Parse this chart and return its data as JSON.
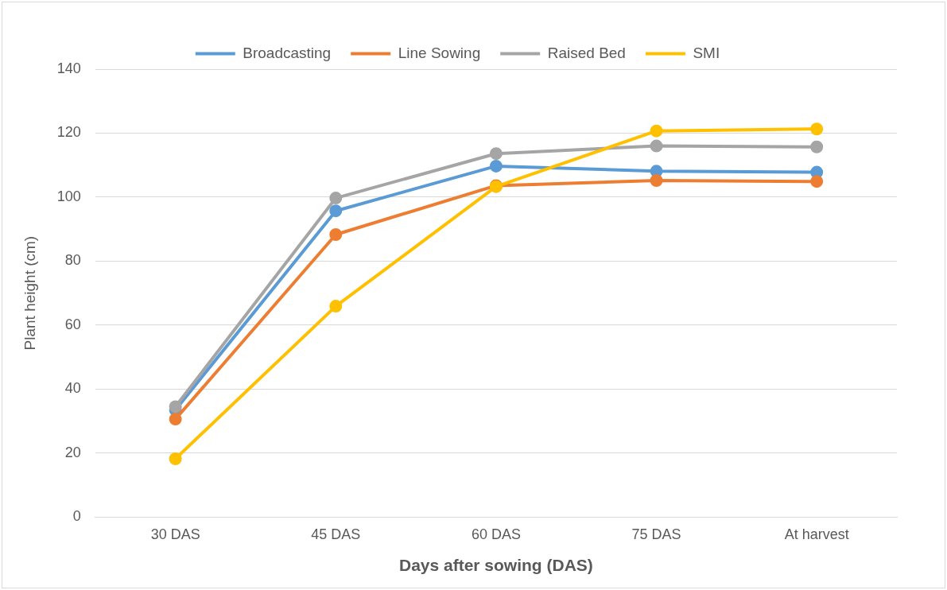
{
  "chart_data": {
    "type": "line",
    "xlabel": "Days after sowing (DAS)",
    "ylabel": "Plant height (cm)",
    "categories": [
      "30 DAS",
      "45 DAS",
      "60 DAS",
      "75 DAS",
      "At harvest"
    ],
    "series": [
      {
        "name": "Broadcasting",
        "color": "#5b9bd5",
        "values": [
          33.5,
          95.7,
          109.7,
          108.1,
          107.8
        ]
      },
      {
        "name": "Line Sowing",
        "color": "#ed7d31",
        "values": [
          30.6,
          88.3,
          103.6,
          105.2,
          104.9
        ]
      },
      {
        "name": "Raised Bed",
        "color": "#a5a5a5",
        "values": [
          34.5,
          99.7,
          113.6,
          116.0,
          115.7
        ]
      },
      {
        "name": "SMI",
        "color": "#ffc000",
        "values": [
          18.2,
          65.9,
          103.3,
          120.7,
          121.3
        ]
      }
    ],
    "ylim": [
      0,
      140
    ],
    "yticks": [
      0,
      20,
      40,
      60,
      80,
      100,
      120,
      140
    ],
    "grid": "y",
    "legend": "top",
    "marker": "circle",
    "line_style": "solid"
  }
}
